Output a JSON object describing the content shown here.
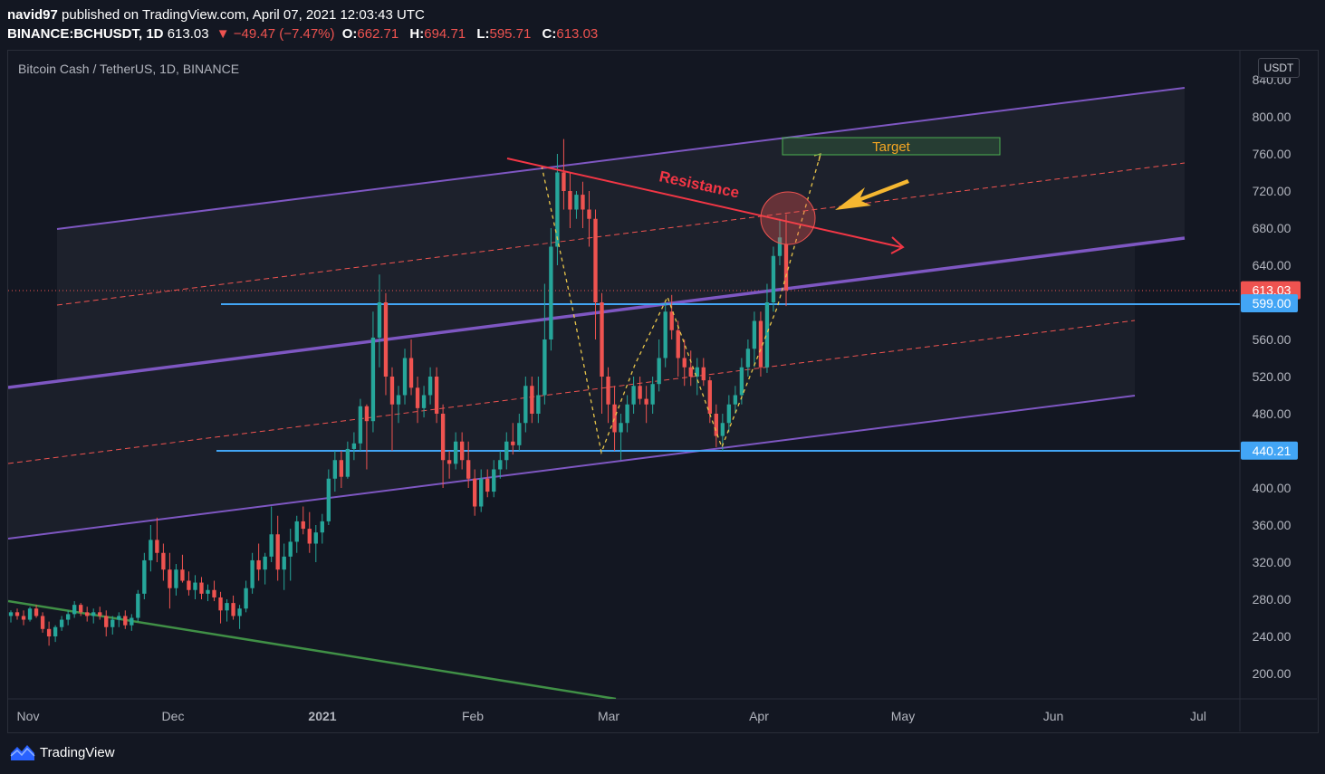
{
  "header": {
    "author": "navid97",
    "published_text": " published on TradingView.com, April 07, 2021 12:03:43 UTC",
    "symbol": "BINANCE:BCHUSDT, 1D",
    "price": "613.03",
    "change": "▼ −49.47 (−7.47%)",
    "o_label": "O:",
    "o_val": "662.71",
    "h_label": "H:",
    "h_val": "694.71",
    "l_label": "L:",
    "l_val": "595.71",
    "c_label": "C:",
    "c_val": "613.03"
  },
  "chart_title": "Bitcoin Cash / TetherUS, 1D, BINANCE",
  "currency": "USDT",
  "footer": {
    "brand": "TradingView",
    "logo_icon": "tradingview-logo-icon"
  },
  "colors": {
    "up": "#26a69a",
    "down": "#ef5350",
    "channel": "#7e57c2",
    "support": "#42a5f5",
    "resistance": "#f23645",
    "target": "#4caf50",
    "arrow": "#f5b731",
    "bg": "#131722"
  },
  "chart_data": {
    "type": "candlestick",
    "y_axis": {
      "ticks": [
        "840.00",
        "800.00",
        "760.00",
        "720.00",
        "680.00",
        "640.00",
        "560.00",
        "520.00",
        "480.00",
        "400.00",
        "360.00",
        "320.00",
        "280.00",
        "240.00",
        "200.00"
      ],
      "range": [
        180,
        850
      ]
    },
    "x_axis": {
      "ticks": [
        "Nov",
        "Dec",
        "2021",
        "Feb",
        "Mar",
        "Apr",
        "May",
        "Jun",
        "Jul"
      ]
    },
    "price_labels": [
      {
        "label": "613.03",
        "value": 613.03,
        "color": "#ef5350"
      },
      {
        "label": "599.00",
        "value": 599.0,
        "color": "#42a5f5"
      },
      {
        "label": "440.21",
        "value": 440.21,
        "color": "#42a5f5"
      }
    ],
    "annotations": {
      "resistance": "Resistance",
      "target": "Target"
    },
    "candles": [
      [
        262,
        268,
        255,
        266
      ],
      [
        266,
        270,
        258,
        262
      ],
      [
        262,
        268,
        252,
        258
      ],
      [
        258,
        272,
        256,
        270
      ],
      [
        270,
        274,
        260,
        262
      ],
      [
        262,
        266,
        244,
        248
      ],
      [
        248,
        256,
        230,
        240
      ],
      [
        240,
        252,
        234,
        250
      ],
      [
        250,
        262,
        246,
        258
      ],
      [
        258,
        268,
        252,
        264
      ],
      [
        264,
        278,
        260,
        274
      ],
      [
        274,
        276,
        262,
        266
      ],
      [
        266,
        272,
        256,
        262
      ],
      [
        262,
        270,
        254,
        266
      ],
      [
        266,
        272,
        258,
        262
      ],
      [
        262,
        268,
        240,
        250
      ],
      [
        250,
        262,
        242,
        258
      ],
      [
        258,
        266,
        250,
        262
      ],
      [
        262,
        268,
        248,
        252
      ],
      [
        252,
        264,
        246,
        260
      ],
      [
        260,
        290,
        256,
        286
      ],
      [
        286,
        330,
        280,
        322
      ],
      [
        322,
        360,
        310,
        344
      ],
      [
        344,
        368,
        320,
        330
      ],
      [
        330,
        340,
        300,
        312
      ],
      [
        312,
        330,
        270,
        292
      ],
      [
        292,
        318,
        284,
        312
      ],
      [
        312,
        328,
        298,
        300
      ],
      [
        300,
        310,
        284,
        290
      ],
      [
        290,
        306,
        280,
        298
      ],
      [
        298,
        304,
        280,
        286
      ],
      [
        286,
        296,
        278,
        290
      ],
      [
        290,
        300,
        278,
        282
      ],
      [
        282,
        288,
        254,
        268
      ],
      [
        268,
        280,
        256,
        276
      ],
      [
        276,
        284,
        258,
        262
      ],
      [
        262,
        274,
        248,
        270
      ],
      [
        270,
        300,
        266,
        292
      ],
      [
        292,
        330,
        286,
        322
      ],
      [
        322,
        340,
        300,
        312
      ],
      [
        312,
        330,
        296,
        326
      ],
      [
        326,
        380,
        320,
        350
      ],
      [
        350,
        370,
        300,
        312
      ],
      [
        312,
        340,
        290,
        326
      ],
      [
        326,
        356,
        300,
        342
      ],
      [
        342,
        370,
        330,
        364
      ],
      [
        364,
        380,
        350,
        356
      ],
      [
        356,
        374,
        330,
        340
      ],
      [
        340,
        360,
        320,
        352
      ],
      [
        352,
        372,
        340,
        364
      ],
      [
        364,
        420,
        360,
        410
      ],
      [
        410,
        440,
        396,
        430
      ],
      [
        430,
        440,
        400,
        412
      ],
      [
        412,
        450,
        410,
        442
      ],
      [
        442,
        460,
        430,
        448
      ],
      [
        448,
        496,
        440,
        488
      ],
      [
        488,
        490,
        420,
        472
      ],
      [
        472,
        590,
        460,
        562
      ],
      [
        562,
        630,
        530,
        600
      ],
      [
        600,
        610,
        500,
        520
      ],
      [
        520,
        530,
        440,
        490
      ],
      [
        490,
        510,
        470,
        500
      ],
      [
        500,
        550,
        490,
        540
      ],
      [
        540,
        560,
        500,
        508
      ],
      [
        508,
        520,
        470,
        486
      ],
      [
        486,
        510,
        476,
        500
      ],
      [
        500,
        530,
        490,
        520
      ],
      [
        520,
        530,
        470,
        480
      ],
      [
        480,
        490,
        400,
        430
      ],
      [
        430,
        440,
        410,
        426
      ],
      [
        426,
        460,
        420,
        450
      ],
      [
        450,
        460,
        420,
        430
      ],
      [
        430,
        450,
        400,
        410
      ],
      [
        410,
        420,
        370,
        380
      ],
      [
        380,
        420,
        374,
        410
      ],
      [
        410,
        420,
        390,
        396
      ],
      [
        396,
        430,
        390,
        420
      ],
      [
        420,
        440,
        410,
        430
      ],
      [
        430,
        460,
        420,
        450
      ],
      [
        450,
        470,
        436,
        446
      ],
      [
        446,
        480,
        440,
        470
      ],
      [
        470,
        520,
        460,
        510
      ],
      [
        510,
        520,
        470,
        480
      ],
      [
        480,
        520,
        470,
        500
      ],
      [
        500,
        620,
        490,
        560
      ],
      [
        560,
        680,
        548,
        660
      ],
      [
        660,
        760,
        640,
        740
      ],
      [
        740,
        776,
        700,
        720
      ],
      [
        720,
        740,
        680,
        700
      ],
      [
        700,
        720,
        690,
        716
      ],
      [
        716,
        730,
        680,
        700
      ],
      [
        700,
        720,
        660,
        690
      ],
      [
        690,
        700,
        560,
        600
      ],
      [
        600,
        610,
        480,
        520
      ],
      [
        520,
        530,
        470,
        490
      ],
      [
        490,
        510,
        440,
        460
      ],
      [
        460,
        480,
        430,
        470
      ],
      [
        470,
        500,
        460,
        490
      ],
      [
        490,
        520,
        480,
        510
      ],
      [
        510,
        520,
        490,
        496
      ],
      [
        496,
        510,
        470,
        490
      ],
      [
        490,
        520,
        480,
        512
      ],
      [
        512,
        560,
        504,
        540
      ],
      [
        540,
        600,
        530,
        590
      ],
      [
        590,
        608,
        560,
        570
      ],
      [
        570,
        580,
        520,
        540
      ],
      [
        540,
        560,
        510,
        530
      ],
      [
        530,
        548,
        510,
        520
      ],
      [
        520,
        540,
        500,
        530
      ],
      [
        530,
        540,
        510,
        516
      ],
      [
        516,
        520,
        470,
        480
      ],
      [
        480,
        490,
        444,
        456
      ],
      [
        456,
        480,
        440,
        470
      ],
      [
        470,
        500,
        460,
        490
      ],
      [
        490,
        510,
        480,
        500
      ],
      [
        500,
        540,
        490,
        530
      ],
      [
        530,
        560,
        520,
        550
      ],
      [
        550,
        590,
        530,
        580
      ],
      [
        580,
        590,
        520,
        530
      ],
      [
        530,
        620,
        524,
        600
      ],
      [
        600,
        660,
        590,
        650
      ],
      [
        650,
        690,
        640,
        670
      ],
      [
        663,
        695,
        596,
        613
      ]
    ]
  }
}
